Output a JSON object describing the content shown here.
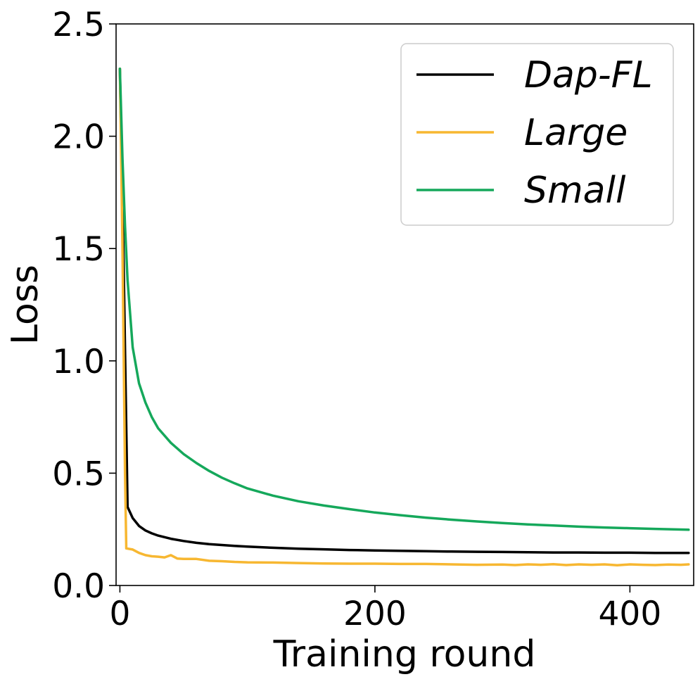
{
  "chart_data": {
    "type": "line",
    "title": "",
    "xlabel": "Training round",
    "ylabel": "Loss",
    "xlim": [
      -3,
      450
    ],
    "ylim": [
      0,
      2.5
    ],
    "xticks": [
      0,
      200,
      400
    ],
    "xtick_labels": [
      "0",
      "200",
      "400"
    ],
    "yticks": [
      0,
      0.5,
      1.0,
      1.5,
      2.0,
      2.5
    ],
    "ytick_labels": [
      "0.0",
      "0.5",
      "1.0",
      "1.5",
      "2.0",
      "2.5"
    ],
    "grid": false,
    "legend_position": "top-right",
    "series": [
      {
        "name": "Dap-FL",
        "color": "#000000",
        "x": [
          0,
          3,
          6,
          10,
          15,
          20,
          25,
          30,
          40,
          50,
          60,
          70,
          80,
          90,
          100,
          120,
          140,
          160,
          180,
          200,
          220,
          240,
          260,
          280,
          300,
          320,
          340,
          360,
          380,
          400,
          420,
          446
        ],
        "y": [
          2.3,
          1.4,
          0.35,
          0.3,
          0.265,
          0.245,
          0.232,
          0.222,
          0.208,
          0.198,
          0.19,
          0.184,
          0.18,
          0.176,
          0.173,
          0.168,
          0.164,
          0.161,
          0.158,
          0.156,
          0.154,
          0.153,
          0.151,
          0.15,
          0.149,
          0.148,
          0.147,
          0.147,
          0.146,
          0.146,
          0.145,
          0.145
        ]
      },
      {
        "name": "Large",
        "color": "#F7B731",
        "x": [
          0,
          2,
          4,
          5,
          10,
          15,
          20,
          25,
          30,
          35,
          40,
          45,
          50,
          60,
          70,
          80,
          90,
          100,
          120,
          140,
          160,
          180,
          200,
          220,
          240,
          260,
          280,
          300,
          310,
          320,
          330,
          340,
          350,
          360,
          370,
          380,
          390,
          400,
          410,
          420,
          430,
          440,
          446
        ],
        "y": [
          2.3,
          1.5,
          0.5,
          0.165,
          0.16,
          0.145,
          0.135,
          0.13,
          0.128,
          0.125,
          0.135,
          0.12,
          0.118,
          0.118,
          0.11,
          0.108,
          0.105,
          0.103,
          0.102,
          0.1,
          0.098,
          0.097,
          0.097,
          0.096,
          0.096,
          0.094,
          0.092,
          0.093,
          0.091,
          0.094,
          0.092,
          0.095,
          0.091,
          0.094,
          0.092,
          0.094,
          0.09,
          0.094,
          0.092,
          0.091,
          0.093,
          0.092,
          0.094
        ]
      },
      {
        "name": "Small",
        "color": "#15A85B",
        "x": [
          0,
          2,
          4,
          6,
          10,
          15,
          20,
          25,
          30,
          40,
          50,
          60,
          70,
          80,
          90,
          100,
          120,
          140,
          160,
          180,
          200,
          220,
          240,
          260,
          280,
          300,
          320,
          340,
          360,
          380,
          400,
          420,
          446
        ],
        "y": [
          2.3,
          1.9,
          1.6,
          1.36,
          1.06,
          0.9,
          0.815,
          0.75,
          0.7,
          0.635,
          0.585,
          0.545,
          0.51,
          0.48,
          0.455,
          0.432,
          0.4,
          0.375,
          0.356,
          0.34,
          0.325,
          0.313,
          0.302,
          0.293,
          0.285,
          0.278,
          0.272,
          0.267,
          0.262,
          0.258,
          0.255,
          0.252,
          0.248
        ]
      }
    ]
  }
}
